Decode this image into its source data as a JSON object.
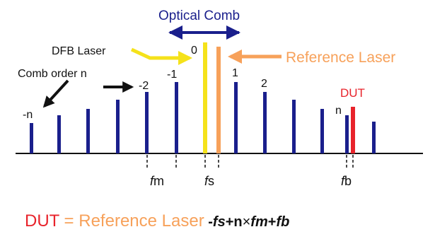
{
  "colors": {
    "comb_line": "#1a1f8c",
    "dfb_laser": "#f5e21a",
    "reference_laser": "#f7a15a",
    "dut": "#e8232b",
    "axis": "#111111",
    "label": "#111111"
  },
  "labels": {
    "optical_comb": "Optical Comb",
    "dfb_laser": "DFB Laser",
    "reference_laser": "Reference Laser",
    "comb_order": "Comb order n",
    "dut": "DUT",
    "order_neg_n": "-n",
    "order_neg2": "-2",
    "order_neg1": "-1",
    "order_0": "0",
    "order_1": "1",
    "order_2": "2",
    "order_n": "n",
    "fm_f": "f",
    "fm_sub": "m",
    "fs_f": "f",
    "fs_sub": "s",
    "fb_f": "f",
    "fb_sub": "b"
  },
  "formula": {
    "dut": "DUT",
    "equals": " = ",
    "reference": "Reference Laser",
    "minus": " -",
    "fs": "fs",
    "plus_n": "+n",
    "times": "×",
    "fm": "fm",
    "plus": "+",
    "fb": "fb"
  }
}
